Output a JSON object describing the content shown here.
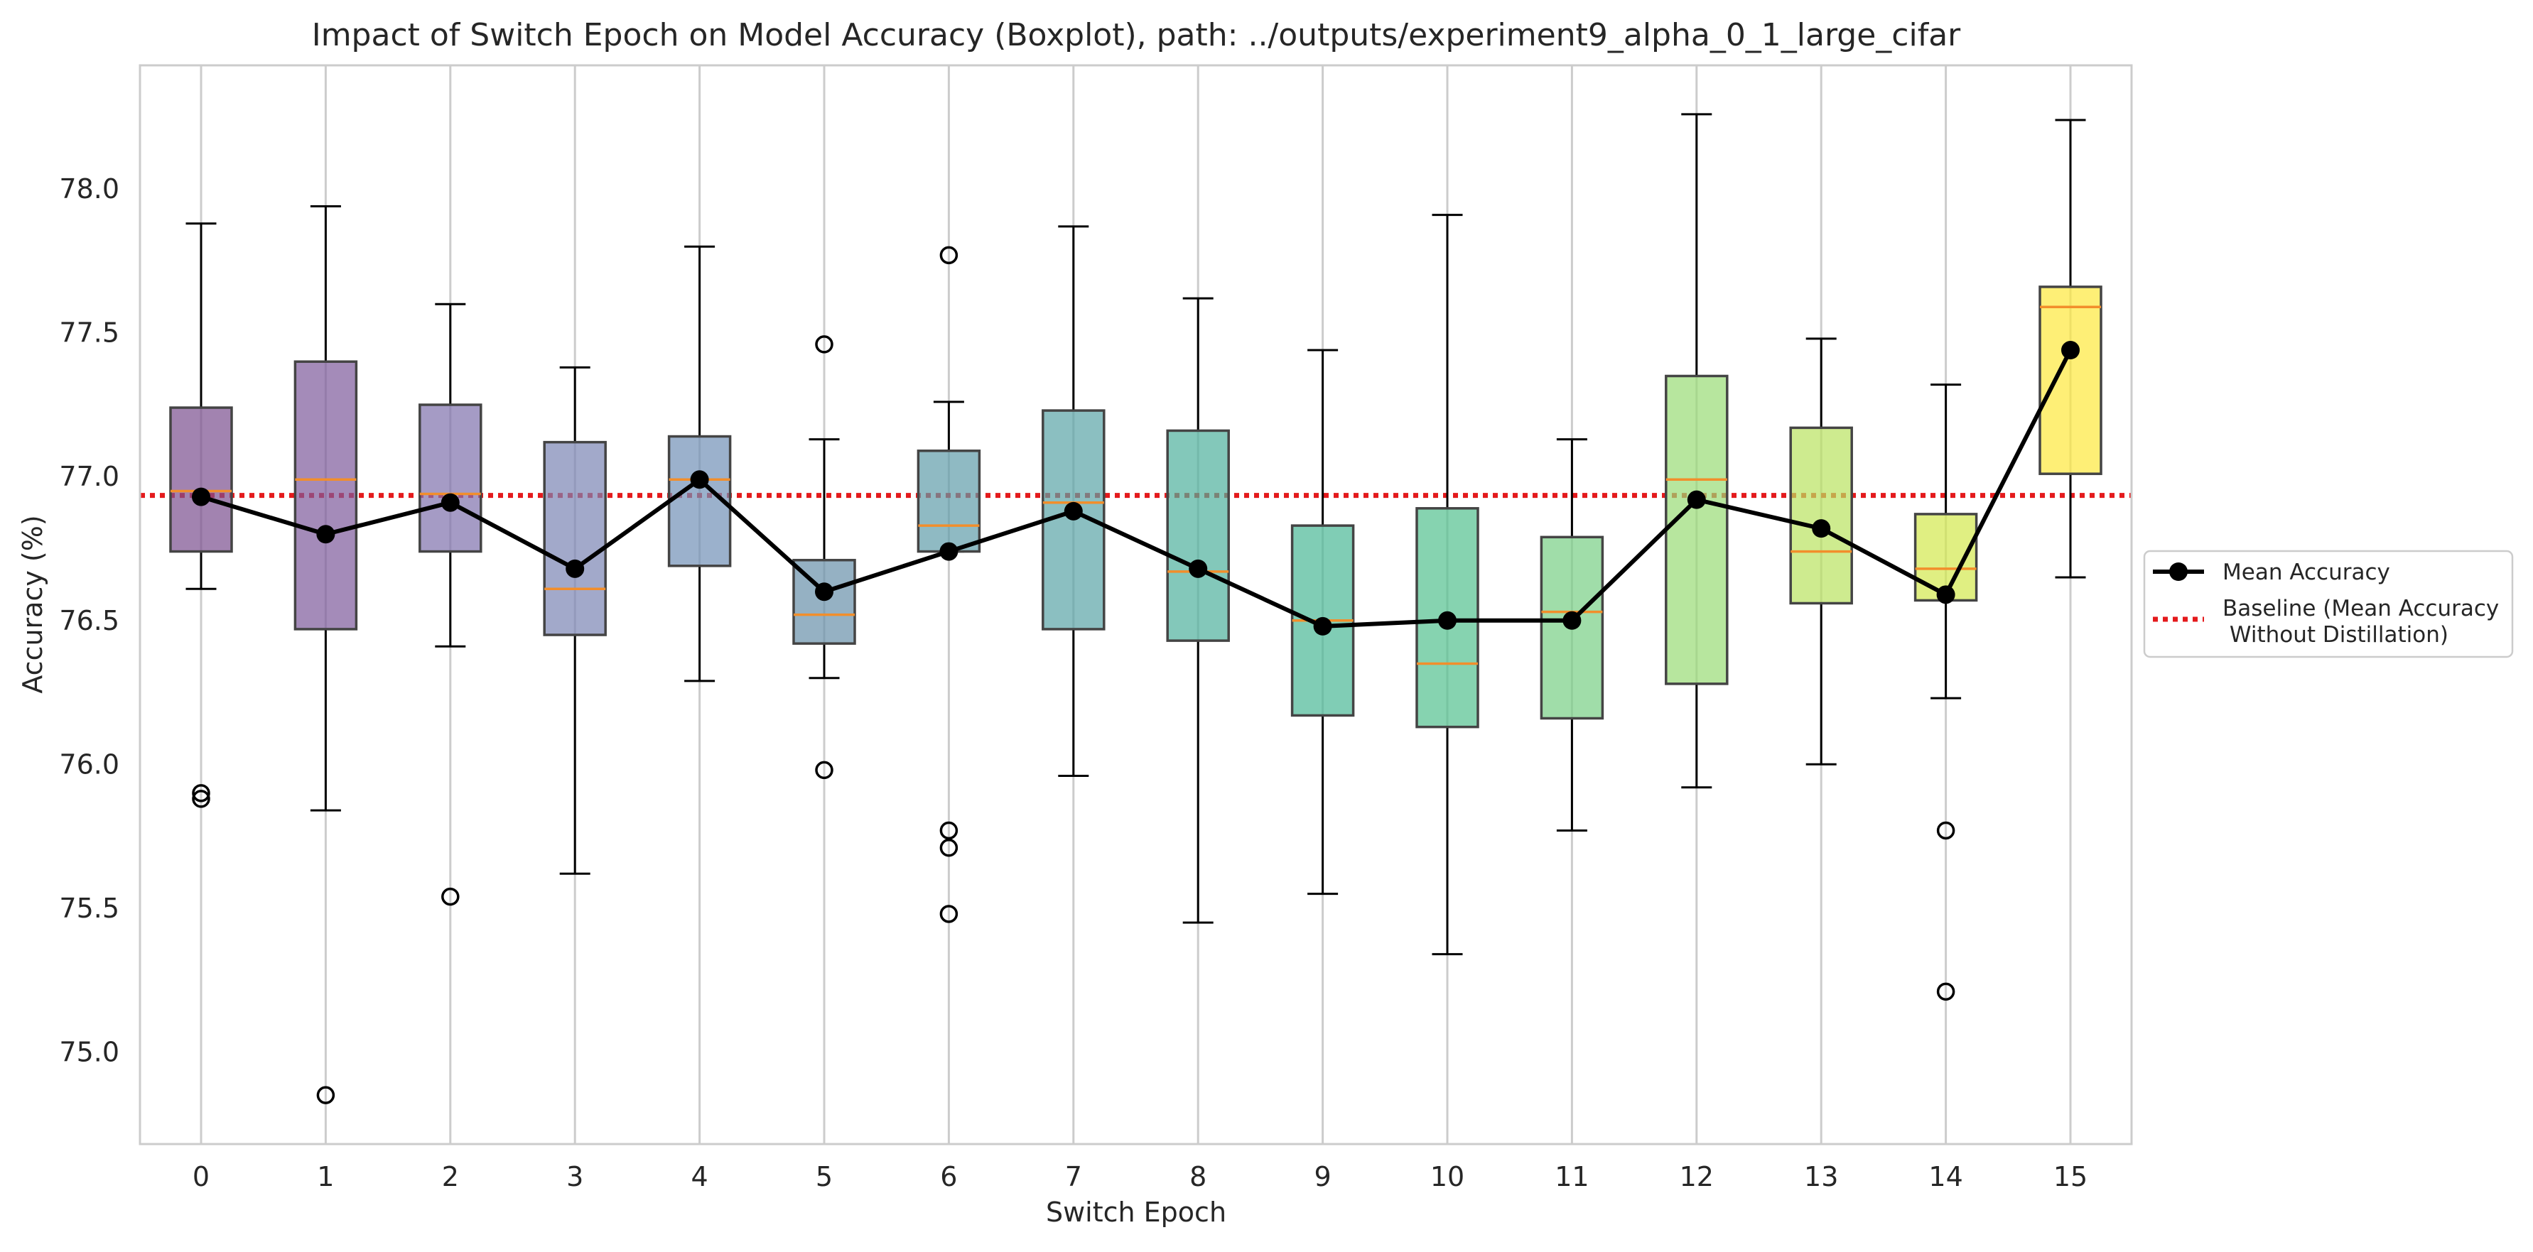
{
  "chart_data": {
    "type": "box",
    "title": "Impact of Switch Epoch on Model Accuracy (Boxplot), path: ../outputs/experiment9_alpha_0_1_large_cifar",
    "xlabel": "Switch Epoch",
    "ylabel": "Accuracy (%)",
    "categories": [
      "0",
      "1",
      "2",
      "3",
      "4",
      "5",
      "6",
      "7",
      "8",
      "9",
      "10",
      "11",
      "12",
      "13",
      "14",
      "15"
    ],
    "ylim": [
      74.68,
      78.43
    ],
    "yticks": [
      "75.0",
      "75.5",
      "76.0",
      "76.5",
      "77.0",
      "77.5",
      "78.0"
    ],
    "grid": "vertical",
    "legend_position": "center-right-outside",
    "legend": {
      "mean_label": "Mean Accuracy",
      "baseline_label_line1": "Baseline (Mean Accuracy",
      "baseline_label_line2": " Without Distillation)"
    },
    "box_colors": [
      "#7b4f8f",
      "#7e5a9b",
      "#7f70ac",
      "#7b84b3",
      "#7190b6",
      "#6890a9",
      "#5f9caa",
      "#5aa4a6",
      "#4fb19c",
      "#4ab896",
      "#52c08f",
      "#78cf84",
      "#98dc75",
      "#b9e35f",
      "#d3e84d",
      "#fde83c"
    ],
    "boxes": [
      {
        "whisker_low": 76.61,
        "q1": 76.74,
        "median": 76.95,
        "q3": 77.24,
        "whisker_high": 77.88,
        "mean": 76.93,
        "outliers": [
          75.9,
          75.88
        ]
      },
      {
        "whisker_low": 75.84,
        "q1": 76.47,
        "median": 76.99,
        "q3": 77.4,
        "whisker_high": 77.94,
        "mean": 76.8,
        "outliers": [
          74.85
        ]
      },
      {
        "whisker_low": 76.41,
        "q1": 76.74,
        "median": 76.94,
        "q3": 77.25,
        "whisker_high": 77.6,
        "mean": 76.91,
        "outliers": [
          75.54
        ]
      },
      {
        "whisker_low": 75.62,
        "q1": 76.45,
        "median": 76.61,
        "q3": 77.12,
        "whisker_high": 77.38,
        "mean": 76.68,
        "outliers": []
      },
      {
        "whisker_low": 76.29,
        "q1": 76.69,
        "median": 76.99,
        "q3": 77.14,
        "whisker_high": 77.8,
        "mean": 76.99,
        "outliers": []
      },
      {
        "whisker_low": 76.3,
        "q1": 76.42,
        "median": 76.52,
        "q3": 76.71,
        "whisker_high": 77.13,
        "mean": 76.6,
        "outliers": [
          77.46,
          75.98
        ]
      },
      {
        "whisker_low": 76.74,
        "q1": 76.74,
        "median": 76.83,
        "q3": 77.09,
        "whisker_high": 77.26,
        "mean": 76.74,
        "outliers": [
          77.77,
          75.77,
          75.71,
          75.48
        ]
      },
      {
        "whisker_low": 75.96,
        "q1": 76.47,
        "median": 76.91,
        "q3": 77.23,
        "whisker_high": 77.87,
        "mean": 76.88,
        "outliers": []
      },
      {
        "whisker_low": 75.45,
        "q1": 76.43,
        "median": 76.67,
        "q3": 77.16,
        "whisker_high": 77.62,
        "mean": 76.68,
        "outliers": []
      },
      {
        "whisker_low": 75.55,
        "q1": 76.17,
        "median": 76.5,
        "q3": 76.83,
        "whisker_high": 77.44,
        "mean": 76.48,
        "outliers": []
      },
      {
        "whisker_low": 75.34,
        "q1": 76.13,
        "median": 76.35,
        "q3": 76.89,
        "whisker_high": 77.91,
        "mean": 76.5,
        "outliers": []
      },
      {
        "whisker_low": 75.77,
        "q1": 76.16,
        "median": 76.53,
        "q3": 76.79,
        "whisker_high": 77.13,
        "mean": 76.5,
        "outliers": []
      },
      {
        "whisker_low": 75.92,
        "q1": 76.28,
        "median": 76.99,
        "q3": 77.35,
        "whisker_high": 78.26,
        "mean": 76.92,
        "outliers": []
      },
      {
        "whisker_low": 76.0,
        "q1": 76.56,
        "median": 76.74,
        "q3": 77.17,
        "whisker_high": 77.48,
        "mean": 76.82,
        "outliers": []
      },
      {
        "whisker_low": 76.23,
        "q1": 76.57,
        "median": 76.68,
        "q3": 76.87,
        "whisker_high": 77.32,
        "mean": 76.59,
        "outliers": [
          75.77,
          75.21
        ]
      },
      {
        "whisker_low": 76.65,
        "q1": 77.01,
        "median": 77.59,
        "q3": 77.66,
        "whisker_high": 78.24,
        "mean": 77.44,
        "outliers": []
      }
    ],
    "baseline": 76.935,
    "colors": {
      "mean_line": "#000000",
      "baseline": "#e41a1c",
      "median": "#f28e2b",
      "grid": "#cccccc",
      "frame": "#cccccc",
      "box_edge": "#444444"
    }
  }
}
